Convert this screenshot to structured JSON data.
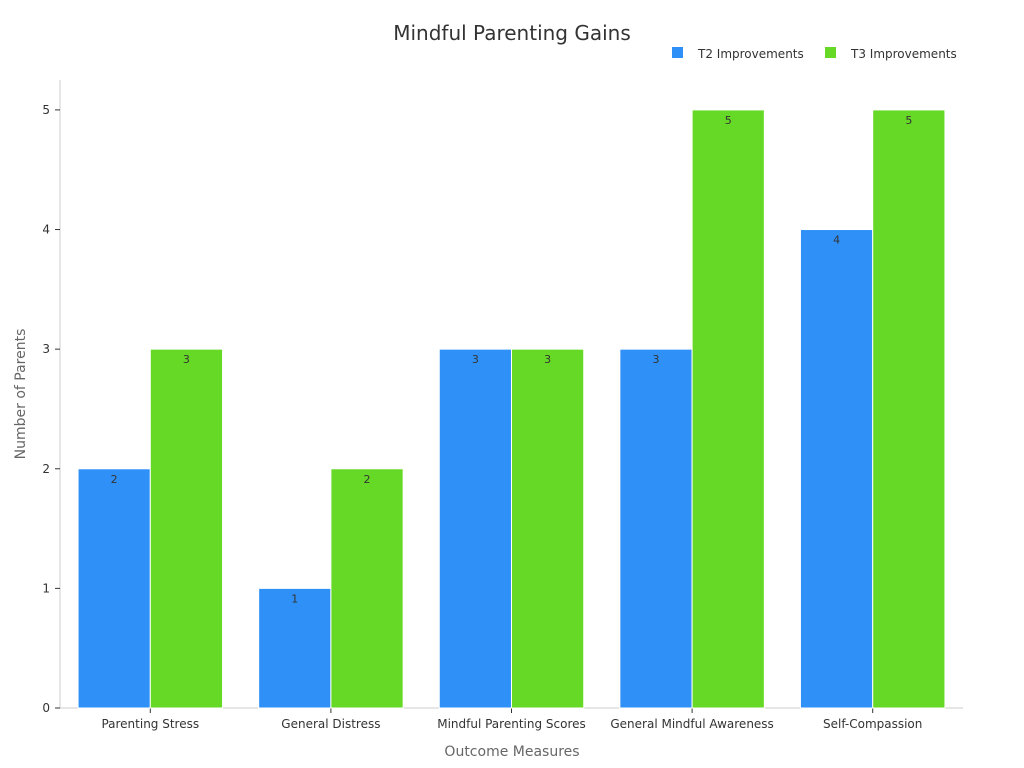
{
  "chart_data": {
    "type": "bar",
    "title": "Mindful Parenting Gains",
    "xlabel": "Outcome Measures",
    "ylabel": "Number of Parents",
    "categories": [
      "Parenting Stress",
      "General Distress",
      "Mindful Parenting Scores",
      "General Mindful Awareness",
      "Self-Compassion"
    ],
    "series": [
      {
        "name": "T2 Improvements",
        "color": "#2f91f7",
        "values": [
          2,
          1,
          3,
          3,
          4
        ]
      },
      {
        "name": "T3 Improvements",
        "color": "#66d926",
        "values": [
          3,
          2,
          3,
          5,
          5
        ]
      }
    ],
    "ylim": [
      0,
      5.25
    ],
    "yticks": [
      0,
      1,
      2,
      3,
      4,
      5
    ],
    "grid": false,
    "legend_position": "top-right"
  }
}
